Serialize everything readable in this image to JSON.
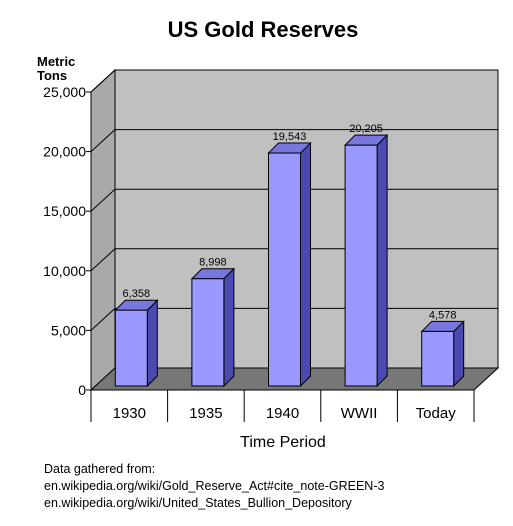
{
  "chart_data": {
    "type": "bar",
    "title": "US Gold Reserves",
    "ylabel_line1": "Metric",
    "ylabel_line2": "Tons",
    "xlabel": "Time Period",
    "categories": [
      "1930",
      "1935",
      "1940",
      "WWII",
      "Today"
    ],
    "values": [
      6358,
      8998,
      19543,
      20205,
      4578
    ],
    "data_labels": [
      "6,358",
      "8,998",
      "19,543",
      "20,205",
      "4,578"
    ],
    "ylim": [
      0,
      25000
    ],
    "yticks": [
      0,
      5000,
      10000,
      15000,
      20000,
      25000
    ],
    "ytick_labels": [
      "0",
      "5,000",
      "10,000",
      "15,000",
      "20,000",
      "25,000"
    ],
    "grid": true,
    "bar_color": "#9999ff",
    "wall_color": "#c0c0c0"
  },
  "notes": {
    "line1": "Data gathered from:",
    "line2": "en.wikipedia.org/wiki/Gold_Reserve_Act#cite_note-GREEN-3",
    "line3": "en.wikipedia.org/wiki/United_States_Bullion_Depository"
  }
}
